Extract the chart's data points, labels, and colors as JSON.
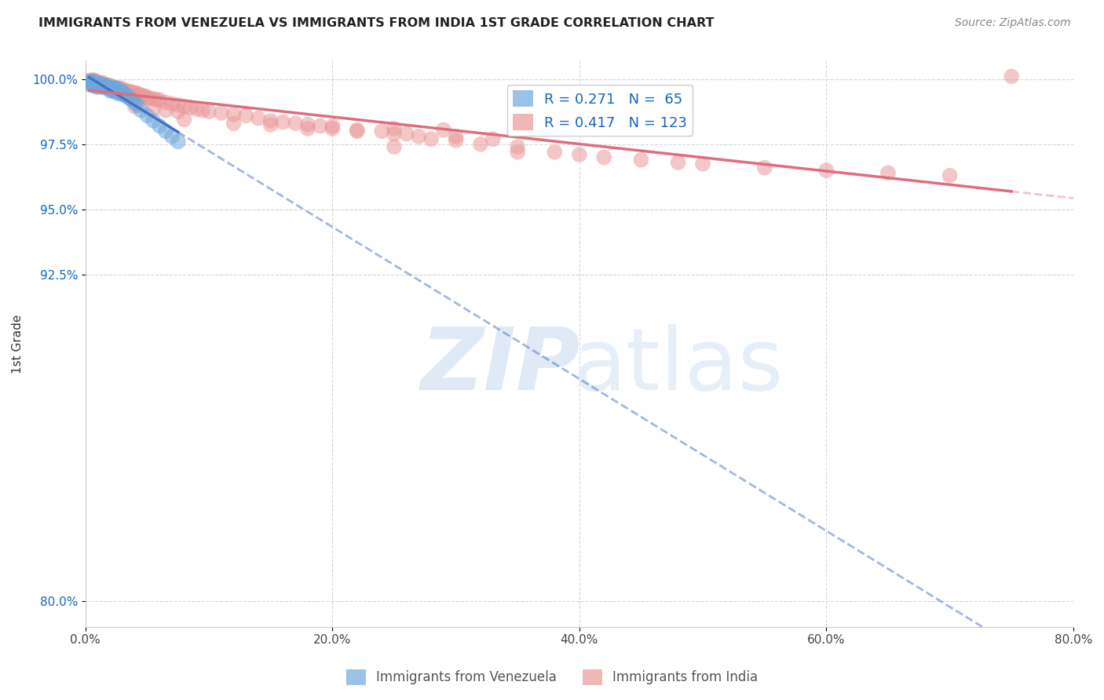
{
  "title": "IMMIGRANTS FROM VENEZUELA VS IMMIGRANTS FROM INDIA 1ST GRADE CORRELATION CHART",
  "source": "Source: ZipAtlas.com",
  "xlabel_ticks": [
    "0.0%",
    "20.0%",
    "40.0%",
    "60.0%",
    "80.0%"
  ],
  "ylabel_ticks": [
    "80.0%",
    "92.5%",
    "95.0%",
    "97.5%",
    "100.0%"
  ],
  "xlabel_vals": [
    0.0,
    0.2,
    0.4,
    0.6,
    0.8
  ],
  "ylabel_vals": [
    0.8,
    0.925,
    0.95,
    0.975,
    1.0
  ],
  "xlim": [
    0.0,
    0.8
  ],
  "ylim": [
    0.79,
    1.007
  ],
  "ylabel_label": "1st Grade",
  "blue_R": 0.271,
  "blue_N": 65,
  "pink_R": 0.417,
  "pink_N": 123,
  "blue_color": "#6fa8dc",
  "pink_color": "#ea9999",
  "blue_line_color": "#4472c4",
  "pink_line_color": "#e06c7c",
  "legend_blue_label": "Immigrants from Venezuela",
  "legend_pink_label": "Immigrants from India",
  "background_color": "#ffffff",
  "grid_color": "#cccccc",
  "blue_scatter_x": [
    0.003,
    0.004,
    0.005,
    0.005,
    0.005,
    0.005,
    0.006,
    0.007,
    0.007,
    0.007,
    0.008,
    0.008,
    0.009,
    0.009,
    0.01,
    0.01,
    0.01,
    0.011,
    0.011,
    0.012,
    0.013,
    0.013,
    0.014,
    0.014,
    0.015,
    0.015,
    0.016,
    0.017,
    0.018,
    0.018,
    0.019,
    0.02,
    0.02,
    0.02,
    0.021,
    0.022,
    0.022,
    0.023,
    0.023,
    0.024,
    0.025,
    0.025,
    0.026,
    0.026,
    0.027,
    0.028,
    0.029,
    0.029,
    0.03,
    0.03,
    0.031,
    0.032,
    0.033,
    0.035,
    0.036,
    0.038,
    0.04,
    0.042,
    0.045,
    0.05,
    0.055,
    0.06,
    0.065,
    0.07,
    0.075
  ],
  "blue_scatter_y": [
    0.999,
    0.9985,
    0.9985,
    0.998,
    0.9975,
    0.999,
    0.999,
    0.9985,
    0.998,
    0.9975,
    0.9985,
    0.9975,
    0.9985,
    0.997,
    0.9985,
    0.998,
    0.9975,
    0.9975,
    0.997,
    0.998,
    0.9975,
    0.997,
    0.9975,
    0.997,
    0.9975,
    0.997,
    0.9975,
    0.9975,
    0.997,
    0.9965,
    0.9965,
    0.9965,
    0.9965,
    0.9955,
    0.9965,
    0.9965,
    0.9955,
    0.9965,
    0.9955,
    0.9965,
    0.9965,
    0.995,
    0.9955,
    0.9945,
    0.9955,
    0.995,
    0.9955,
    0.9945,
    0.995,
    0.994,
    0.9945,
    0.994,
    0.9935,
    0.993,
    0.9925,
    0.992,
    0.991,
    0.99,
    0.988,
    0.986,
    0.984,
    0.982,
    0.98,
    0.978,
    0.976
  ],
  "pink_scatter_x": [
    0.003,
    0.004,
    0.005,
    0.005,
    0.006,
    0.006,
    0.007,
    0.007,
    0.008,
    0.008,
    0.009,
    0.009,
    0.01,
    0.01,
    0.011,
    0.011,
    0.012,
    0.012,
    0.013,
    0.013,
    0.014,
    0.014,
    0.015,
    0.015,
    0.016,
    0.016,
    0.017,
    0.017,
    0.018,
    0.018,
    0.019,
    0.019,
    0.02,
    0.02,
    0.021,
    0.021,
    0.022,
    0.022,
    0.023,
    0.023,
    0.024,
    0.024,
    0.025,
    0.025,
    0.026,
    0.027,
    0.028,
    0.029,
    0.03,
    0.031,
    0.032,
    0.033,
    0.034,
    0.035,
    0.036,
    0.037,
    0.038,
    0.039,
    0.04,
    0.041,
    0.042,
    0.044,
    0.045,
    0.046,
    0.048,
    0.05,
    0.052,
    0.055,
    0.058,
    0.06,
    0.065,
    0.07,
    0.075,
    0.08,
    0.085,
    0.09,
    0.095,
    0.1,
    0.11,
    0.12,
    0.13,
    0.14,
    0.15,
    0.16,
    0.17,
    0.18,
    0.19,
    0.2,
    0.22,
    0.24,
    0.25,
    0.27,
    0.28,
    0.3,
    0.32,
    0.35,
    0.38,
    0.4,
    0.42,
    0.45,
    0.48,
    0.5,
    0.55,
    0.6,
    0.65,
    0.7,
    0.18,
    0.22,
    0.26,
    0.3,
    0.33,
    0.08,
    0.12,
    0.15,
    0.2,
    0.25,
    0.29,
    0.04,
    0.055,
    0.065,
    0.075,
    0.25,
    0.35,
    0.75
  ],
  "pink_scatter_y": [
    0.9995,
    0.999,
    0.9995,
    0.999,
    0.9995,
    0.999,
    0.9985,
    0.9995,
    0.999,
    0.9985,
    0.9985,
    0.999,
    0.998,
    0.9985,
    0.9985,
    0.998,
    0.998,
    0.9985,
    0.9985,
    0.998,
    0.9985,
    0.9975,
    0.998,
    0.9975,
    0.9975,
    0.997,
    0.9975,
    0.997,
    0.9975,
    0.9975,
    0.9975,
    0.997,
    0.9975,
    0.997,
    0.997,
    0.9965,
    0.997,
    0.9965,
    0.9965,
    0.996,
    0.9965,
    0.9965,
    0.9965,
    0.9955,
    0.9965,
    0.9965,
    0.9955,
    0.9965,
    0.9955,
    0.9955,
    0.9955,
    0.995,
    0.9955,
    0.995,
    0.995,
    0.9945,
    0.995,
    0.9945,
    0.994,
    0.9945,
    0.9945,
    0.994,
    0.9935,
    0.9935,
    0.9935,
    0.993,
    0.9925,
    0.9925,
    0.992,
    0.992,
    0.991,
    0.9905,
    0.99,
    0.9895,
    0.989,
    0.9885,
    0.988,
    0.9875,
    0.987,
    0.9865,
    0.986,
    0.985,
    0.984,
    0.9835,
    0.983,
    0.9825,
    0.982,
    0.981,
    0.9805,
    0.98,
    0.979,
    0.978,
    0.977,
    0.9765,
    0.975,
    0.974,
    0.972,
    0.971,
    0.97,
    0.969,
    0.968,
    0.9675,
    0.966,
    0.965,
    0.964,
    0.963,
    0.981,
    0.98,
    0.979,
    0.978,
    0.977,
    0.9845,
    0.983,
    0.9825,
    0.982,
    0.981,
    0.9805,
    0.9895,
    0.9885,
    0.988,
    0.9875,
    0.974,
    0.972,
    1.001
  ]
}
